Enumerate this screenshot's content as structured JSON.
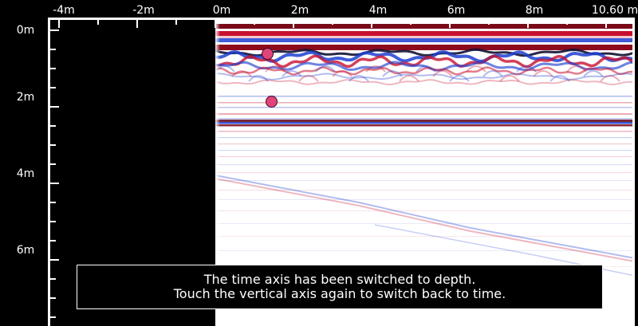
{
  "horizontal_axis": {
    "tick_labels": [
      "-4m",
      "-2m",
      "0m",
      "2m",
      "4m",
      "6m",
      "8m",
      "10.60 m"
    ],
    "range_m": [
      -4,
      10.6
    ]
  },
  "vertical_axis": {
    "mode": "depth",
    "tick_labels": [
      "0m",
      "2m",
      "4m",
      "6m"
    ],
    "range_m": [
      0,
      7.8
    ]
  },
  "markers": [
    {
      "distance_m": 1.35,
      "depth_m": 0.62
    },
    {
      "distance_m": 1.45,
      "depth_m": 1.88
    }
  ],
  "toast": {
    "line1": "The time axis has been switched to depth.",
    "line2": "Touch the vertical axis again to switch back to time."
  },
  "colors": {
    "positive": "#c8102e",
    "negative": "#1f3fd1",
    "background_no_data": "#000000",
    "marker": "#e0447d"
  }
}
